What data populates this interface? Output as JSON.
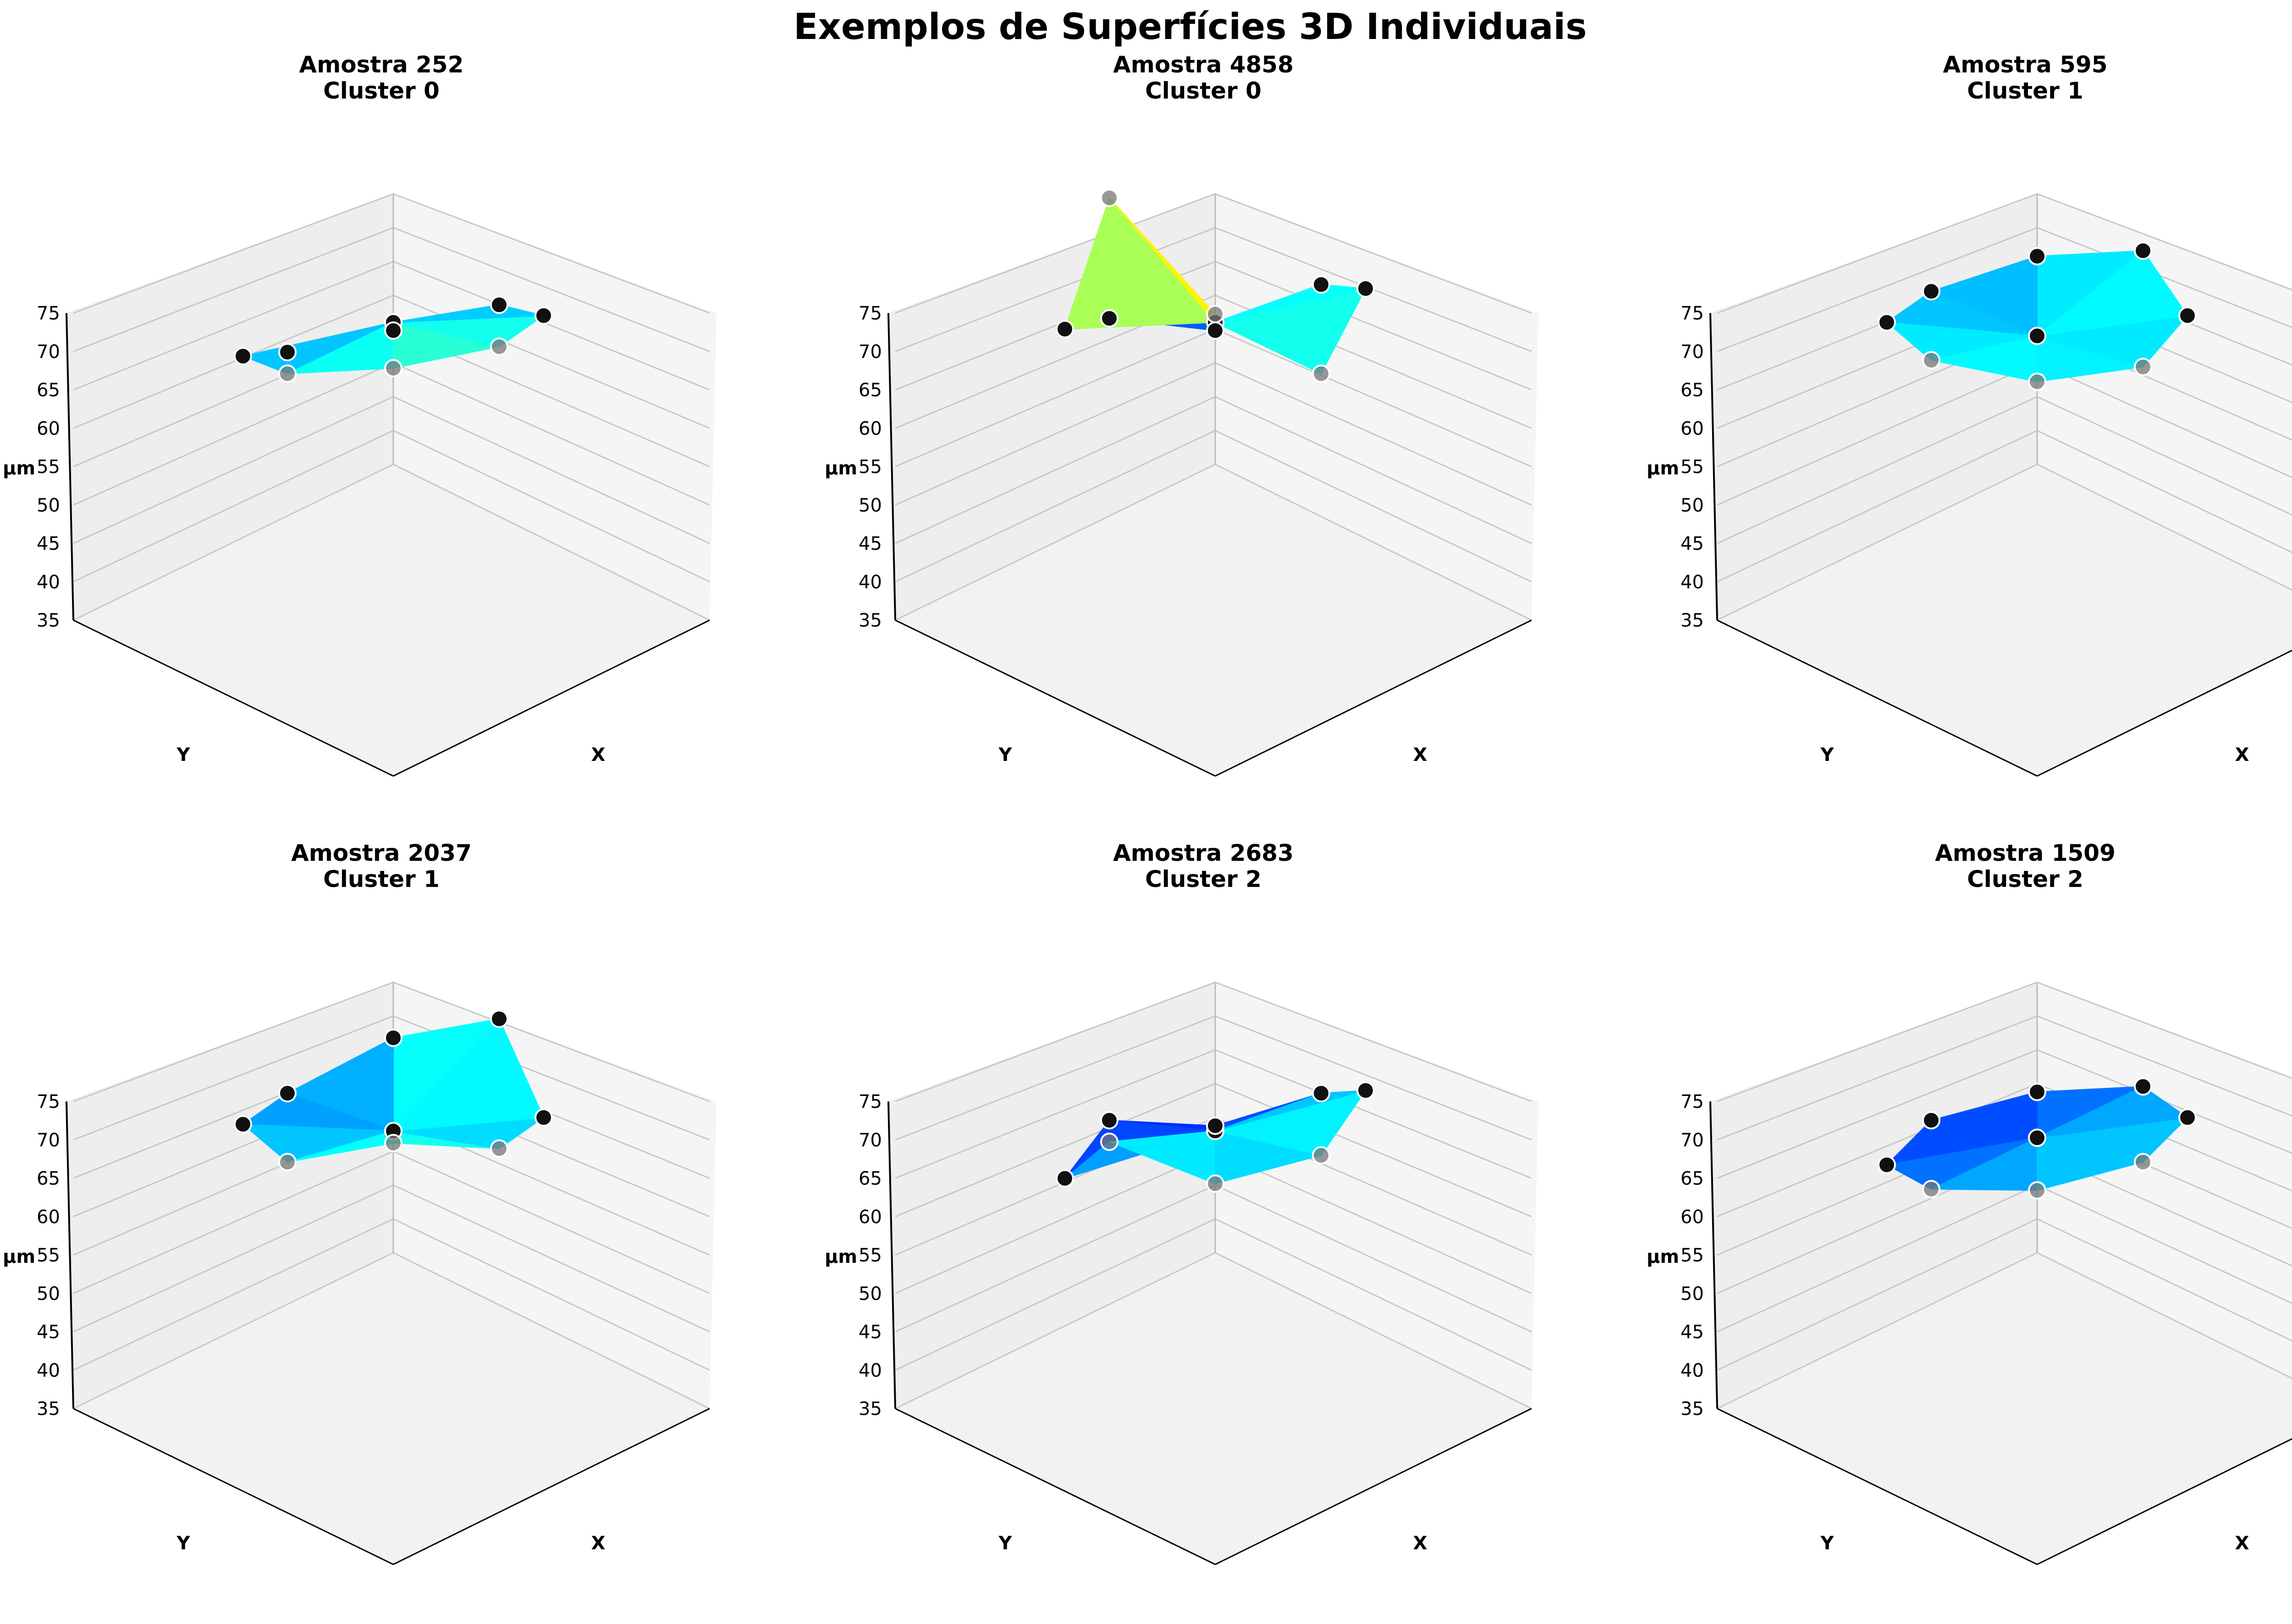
{
  "title": "Exemplos de Superfícies 3D Individuais",
  "chart_data": [
    {
      "type": "surface3d",
      "title": [
        "Amostra 252",
        "Cluster 0"
      ],
      "xlabel": "X",
      "ylabel": "Y",
      "zlabel": "µm",
      "zlim": [
        35,
        75
      ],
      "zticks": [
        "35",
        "40",
        "45",
        "50",
        "55",
        "60",
        "65",
        "70",
        "75"
      ],
      "grid": true,
      "colormap": "jet",
      "points": [
        {
          "x": 0,
          "y": 0,
          "z": 56
        },
        {
          "x": 1,
          "y": 0,
          "z": 51
        },
        {
          "x": 0.71,
          "y": 0.71,
          "z": 44
        },
        {
          "x": 0,
          "y": 1,
          "z": 44
        },
        {
          "x": -0.71,
          "y": 0.71,
          "z": 51
        },
        {
          "x": -1,
          "y": 0,
          "z": 56
        },
        {
          "x": -0.71,
          "y": -0.71,
          "z": 60
        },
        {
          "x": 0,
          "y": -1,
          "z": 60
        },
        {
          "x": 0.71,
          "y": -0.71,
          "z": 57
        }
      ]
    },
    {
      "type": "surface3d",
      "title": [
        "Amostra 4858",
        "Cluster 0"
      ],
      "xlabel": "X",
      "ylabel": "Y",
      "zlabel": "µm",
      "zlim": [
        35,
        75
      ],
      "zticks": [
        "35",
        "40",
        "45",
        "50",
        "55",
        "60",
        "65",
        "70",
        "75"
      ],
      "grid": true,
      "colormap": "jet",
      "points": [
        {
          "x": 0,
          "y": 0,
          "z": 56
        },
        {
          "x": 1,
          "y": 0,
          "z": 54
        },
        {
          "x": 0.71,
          "y": 0.71,
          "z": 44
        },
        {
          "x": 0,
          "y": 1,
          "z": 49
        },
        {
          "x": -0.71,
          "y": 0.71,
          "z": 55
        },
        {
          "x": -1,
          "y": 0,
          "z": 82
        },
        {
          "x": -0.71,
          "y": -0.71,
          "z": 68
        },
        {
          "x": 0,
          "y": -1,
          "z": 56
        },
        {
          "x": 0.71,
          "y": -0.71,
          "z": 61
        }
      ]
    },
    {
      "type": "surface3d",
      "title": [
        "Amostra 595",
        "Cluster 1"
      ],
      "xlabel": "X",
      "ylabel": "Y",
      "zlabel": "µm",
      "zlim": [
        35,
        75
      ],
      "zticks": [
        "35",
        "40",
        "45",
        "50",
        "55",
        "60",
        "65",
        "70",
        "75"
      ],
      "grid": true,
      "colormap": "jet",
      "points": [
        {
          "x": 0,
          "y": 0,
          "z": 54
        },
        {
          "x": 1,
          "y": 0,
          "z": 59
        },
        {
          "x": 0.71,
          "y": 0.71,
          "z": 55
        },
        {
          "x": 0,
          "y": 1,
          "z": 53
        },
        {
          "x": -0.71,
          "y": 0.71,
          "z": 56
        },
        {
          "x": -1,
          "y": 0,
          "z": 58
        },
        {
          "x": -0.71,
          "y": -0.71,
          "z": 58
        },
        {
          "x": 0,
          "y": -1,
          "z": 57
        },
        {
          "x": 0.71,
          "y": -0.71,
          "z": 57
        }
      ]
    },
    {
      "type": "surface3d",
      "title": [
        "Amostra 2037",
        "Cluster 1"
      ],
      "xlabel": "X",
      "ylabel": "Y",
      "zlabel": "µm",
      "zlim": [
        35,
        75
      ],
      "zticks": [
        "35",
        "40",
        "45",
        "50",
        "55",
        "60",
        "65",
        "70",
        "75"
      ],
      "grid": true,
      "colormap": "jet",
      "points": [
        {
          "x": 0,
          "y": 0,
          "z": 53
        },
        {
          "x": 1,
          "y": 0,
          "z": 62
        },
        {
          "x": 0.71,
          "y": 0.71,
          "z": 56
        },
        {
          "x": 0,
          "y": 1,
          "z": 51
        },
        {
          "x": -0.71,
          "y": 0.71,
          "z": 54
        },
        {
          "x": -1,
          "y": 0,
          "z": 56
        },
        {
          "x": -0.71,
          "y": -0.71,
          "z": 62
        },
        {
          "x": 0,
          "y": -1,
          "z": 58
        },
        {
          "x": 0.71,
          "y": -0.71,
          "z": 55
        }
      ]
    },
    {
      "type": "surface3d",
      "title": [
        "Amostra 2683",
        "Cluster 2"
      ],
      "xlabel": "X",
      "ylabel": "Y",
      "zlabel": "µm",
      "zlim": [
        35,
        75
      ],
      "zticks": [
        "35",
        "40",
        "45",
        "50",
        "55",
        "60",
        "65",
        "70",
        "75"
      ],
      "grid": true,
      "colormap": "jet",
      "points": [
        {
          "x": 0,
          "y": 0,
          "z": 53
        },
        {
          "x": 1,
          "y": 0,
          "z": 51
        },
        {
          "x": 0.71,
          "y": 0.71,
          "z": 43
        },
        {
          "x": 0,
          "y": 1,
          "z": 47
        },
        {
          "x": -0.71,
          "y": 0.71,
          "z": 46
        },
        {
          "x": -1,
          "y": 0,
          "z": 59
        },
        {
          "x": -0.71,
          "y": -0.71,
          "z": 56
        },
        {
          "x": 0,
          "y": -1,
          "z": 57
        },
        {
          "x": 0.71,
          "y": -0.71,
          "z": 59
        }
      ]
    },
    {
      "type": "surface3d",
      "title": [
        "Amostra 1509",
        "Cluster 2"
      ],
      "xlabel": "X",
      "ylabel": "Y",
      "zlabel": "µm",
      "zlim": [
        35,
        75
      ],
      "zticks": [
        "35",
        "40",
        "45",
        "50",
        "55",
        "60",
        "65",
        "70",
        "75"
      ],
      "grid": true,
      "colormap": "jet",
      "points": [
        {
          "x": 0,
          "y": 0,
          "z": 52
        },
        {
          "x": 1,
          "y": 0,
          "z": 52
        },
        {
          "x": 0.71,
          "y": 0.71,
          "z": 48
        },
        {
          "x": 0,
          "y": 1,
          "z": 47
        },
        {
          "x": -0.71,
          "y": 0.71,
          "z": 48
        },
        {
          "x": -1,
          "y": 0,
          "z": 52
        },
        {
          "x": -0.71,
          "y": -0.71,
          "z": 55
        },
        {
          "x": 0,
          "y": -1,
          "z": 56
        },
        {
          "x": 0.71,
          "y": -0.71,
          "z": 55
        }
      ]
    }
  ]
}
